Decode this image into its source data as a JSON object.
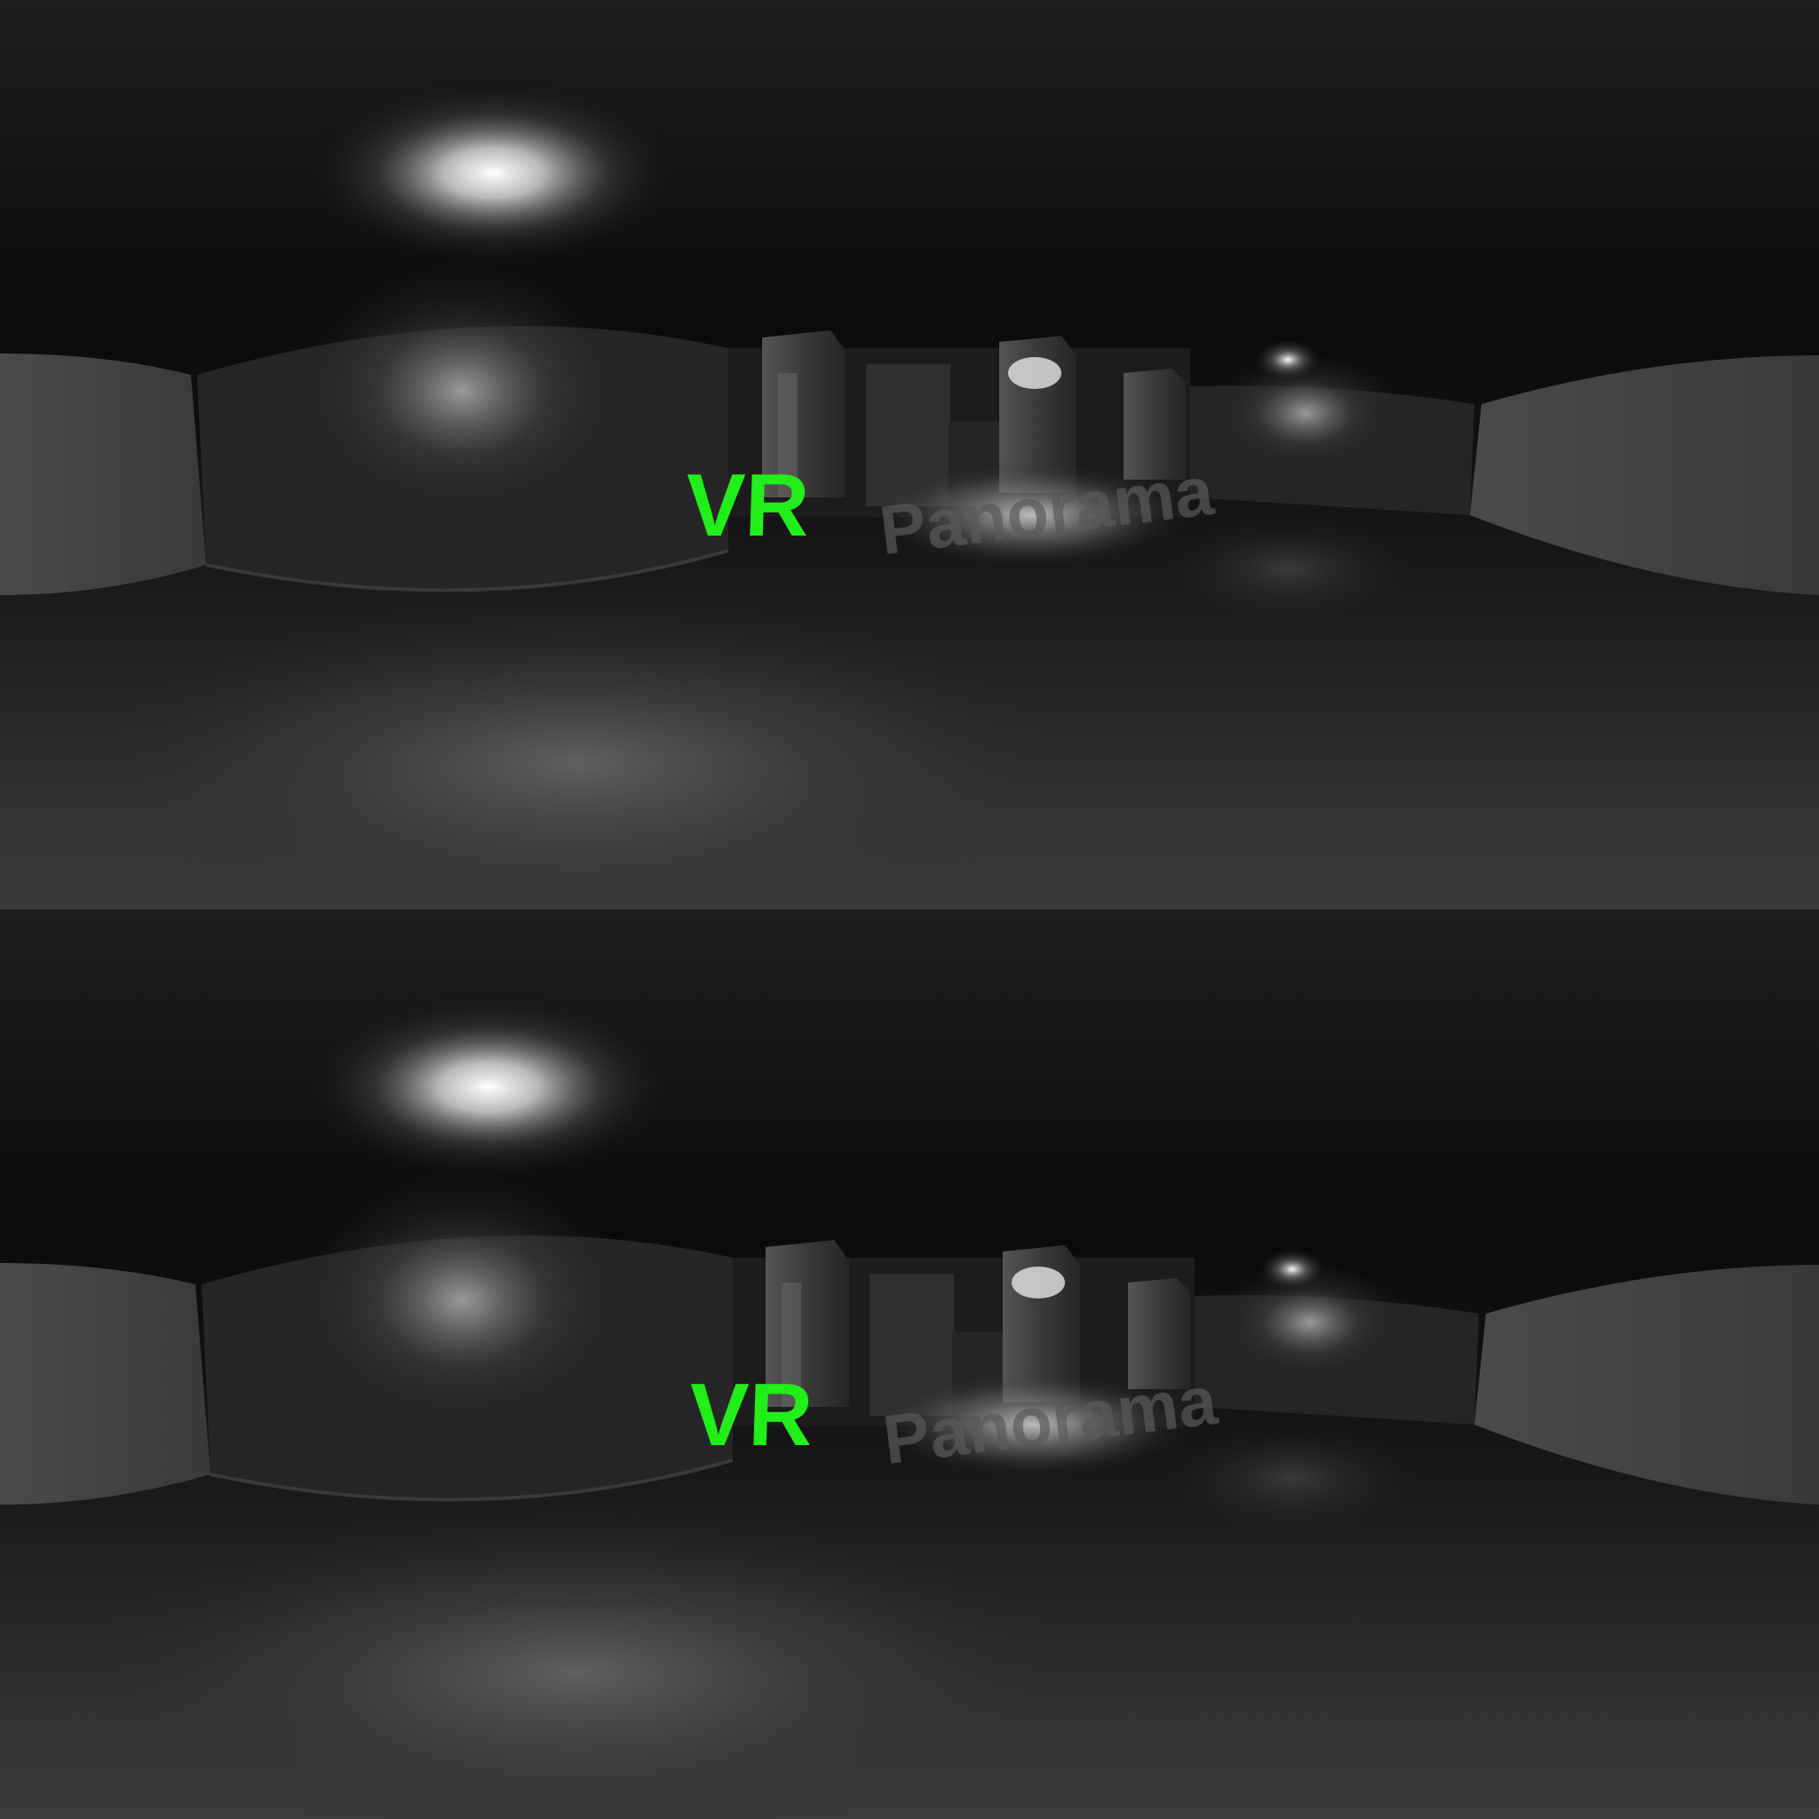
{
  "scene": {
    "logo_primary": "VR",
    "logo_secondary": "Panorama",
    "layout": "stereo-over-under",
    "colors": {
      "logo_primary": "#22ee1a",
      "logo_secondary": "#5a5a5a",
      "background": "#0a0a0a"
    }
  }
}
